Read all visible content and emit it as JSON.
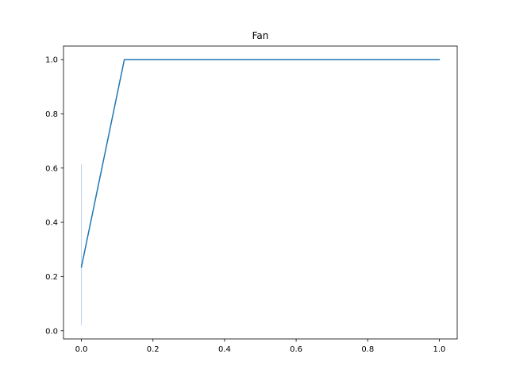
{
  "chart_data": {
    "type": "line",
    "title": "Fan",
    "xlabel": "",
    "ylabel": "",
    "xlim": [
      -0.05,
      1.05
    ],
    "ylim": [
      -0.03,
      1.05
    ],
    "x_ticks": [
      0.0,
      0.2,
      0.4,
      0.6,
      0.8,
      1.0
    ],
    "x_tick_labels": [
      "0.0",
      "0.2",
      "0.4",
      "0.6",
      "0.8",
      "1.0"
    ],
    "y_ticks": [
      0.0,
      0.2,
      0.4,
      0.6,
      0.8,
      1.0
    ],
    "y_tick_labels": [
      "0.0",
      "0.2",
      "0.4",
      "0.6",
      "0.8",
      "1.0"
    ],
    "grid": false,
    "legend": "none",
    "series": [
      {
        "color": "#1f77b4",
        "x": [
          0.0,
          0.12,
          1.0
        ],
        "y": [
          0.235,
          1.0,
          1.0
        ]
      }
    ],
    "band": {
      "color": "#aec7e8",
      "x": 0.0,
      "y_low": 0.02,
      "y_high": 0.615
    }
  }
}
